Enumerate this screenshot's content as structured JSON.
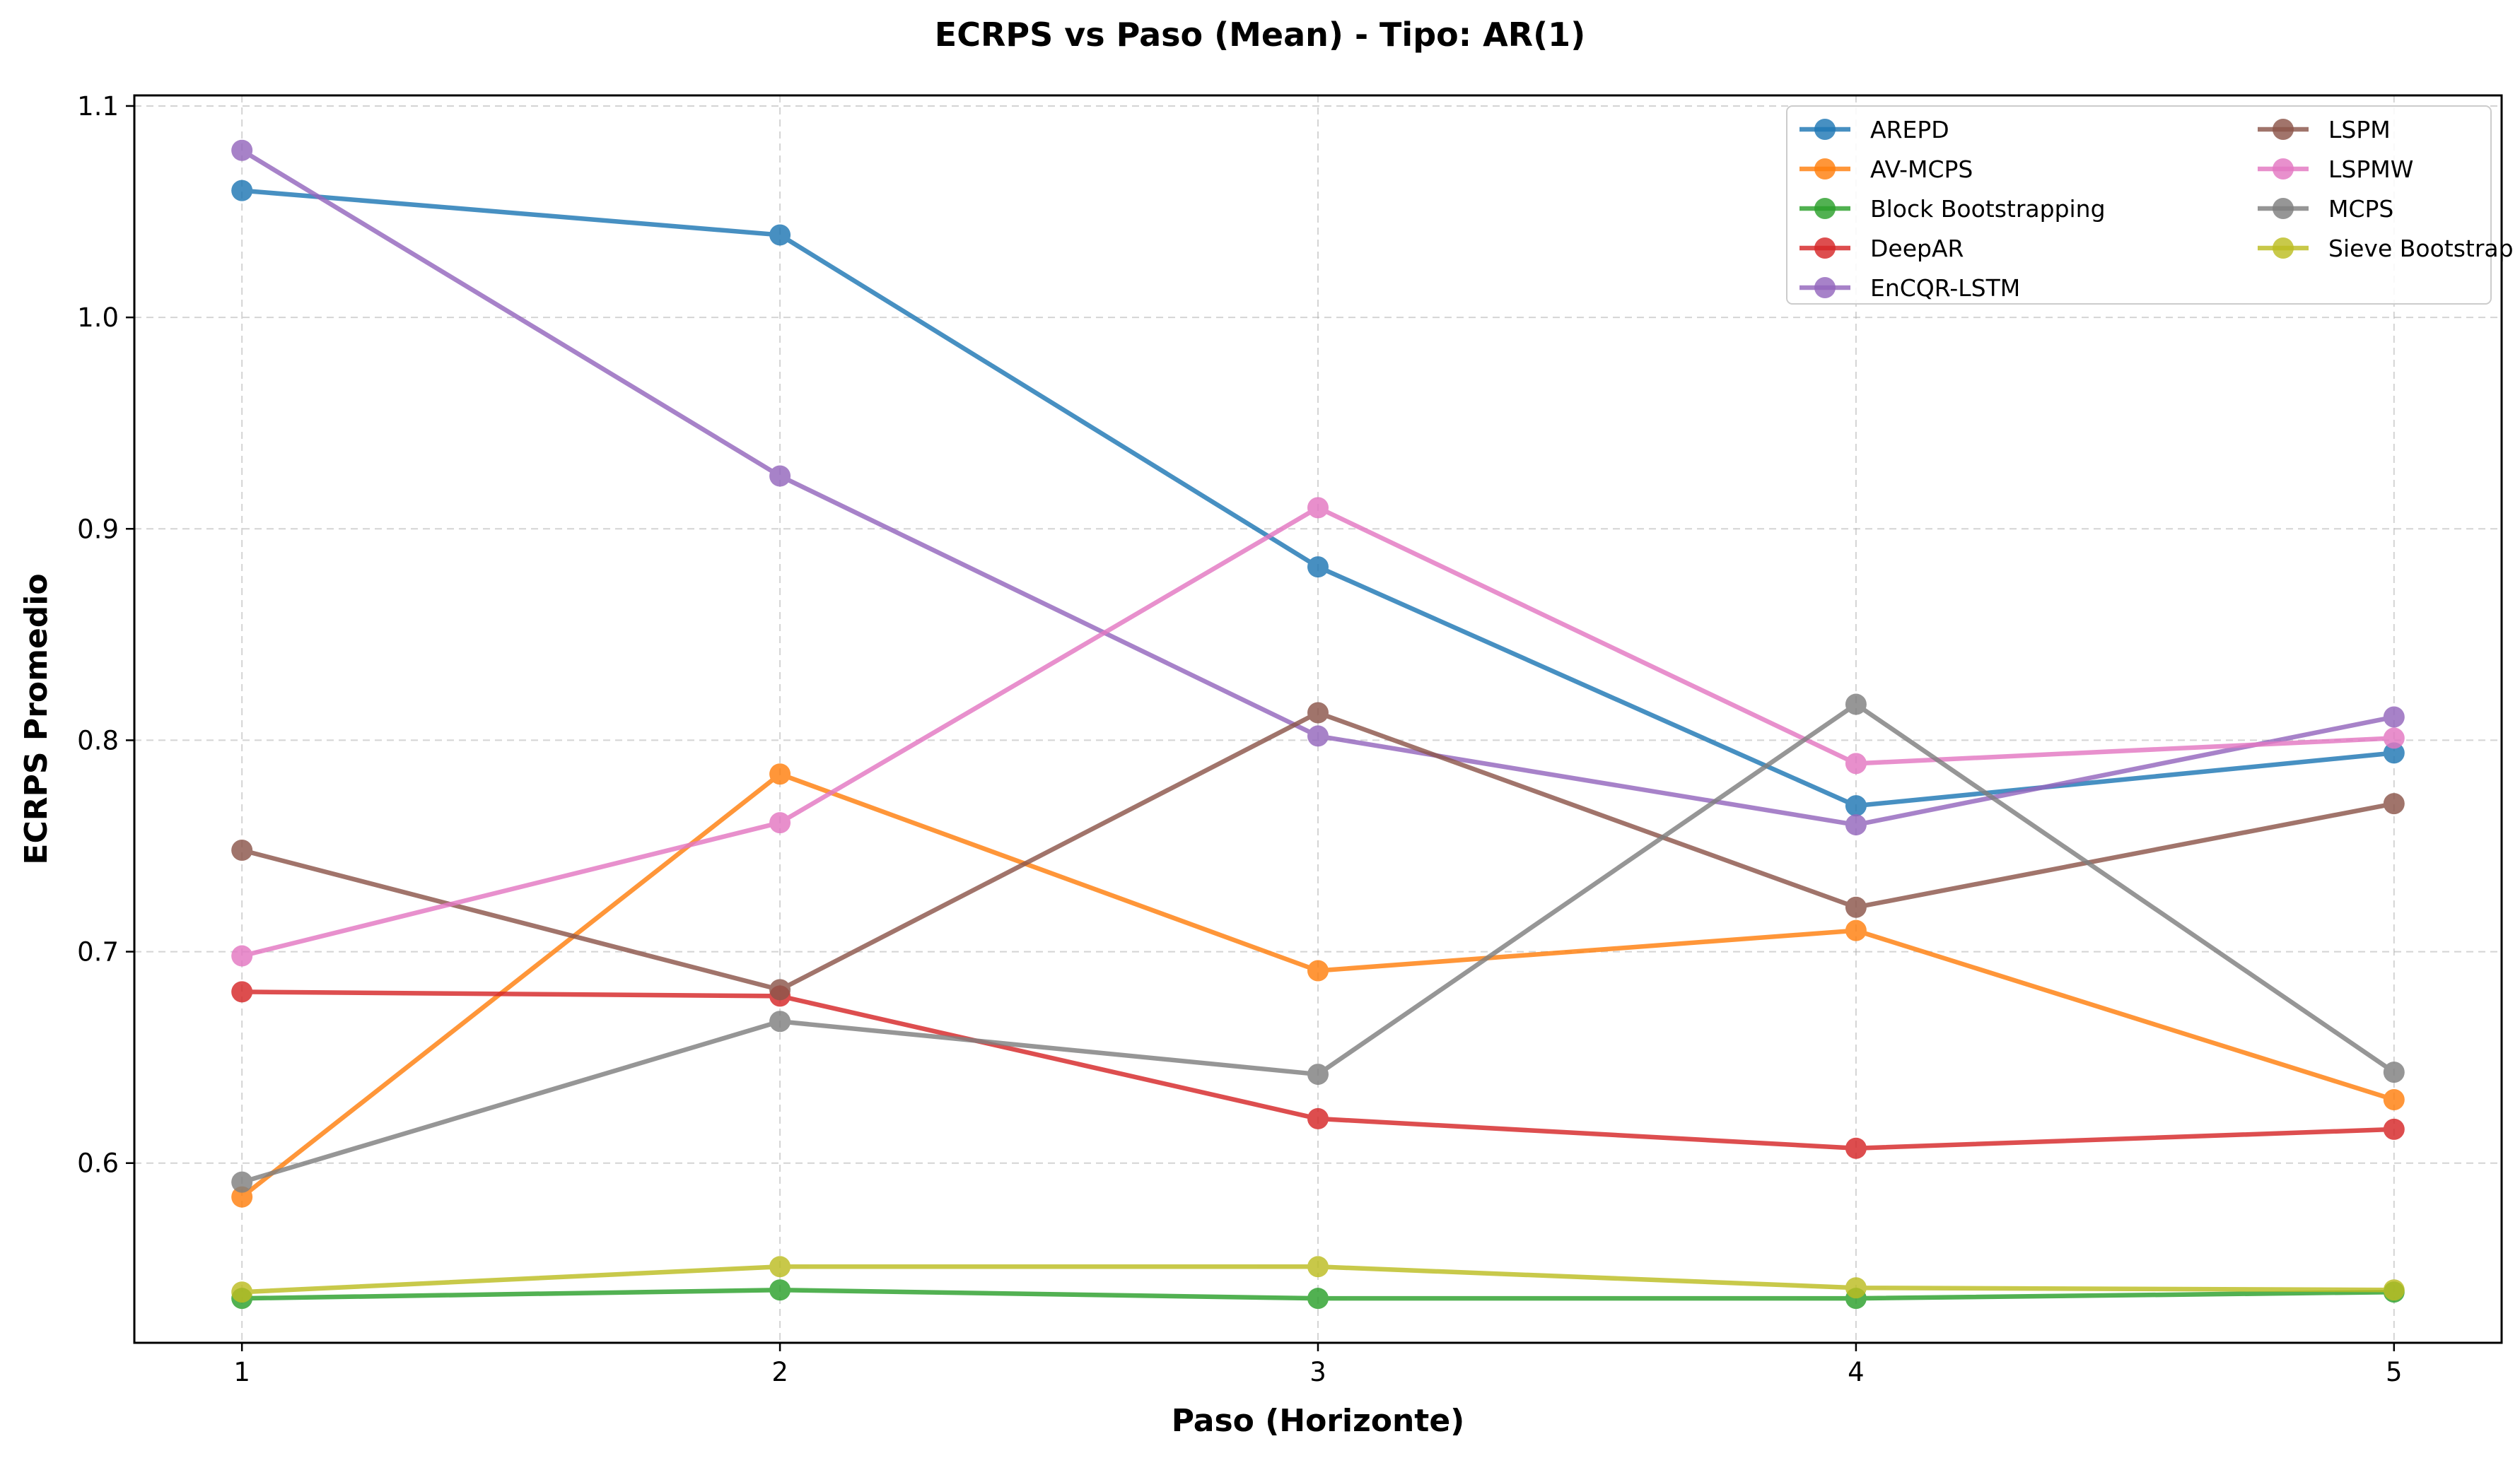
{
  "chart_data": {
    "type": "line",
    "title": "ECRPS vs Paso (Mean) - Tipo: AR(1)",
    "xlabel": "Paso (Horizonte)",
    "ylabel": "ECRPS Promedio",
    "x": [
      1,
      2,
      3,
      4,
      5
    ],
    "xticks": [
      "1",
      "2",
      "3",
      "4",
      "5"
    ],
    "xlim": [
      0.8,
      5.2
    ],
    "ylim": [
      0.515,
      1.105
    ],
    "yticks": [
      "0.6",
      "0.7",
      "0.8",
      "0.9",
      "1.0",
      "1.1"
    ],
    "grid": true,
    "legend_position": "top-right",
    "series": [
      {
        "name": "AREPD",
        "color": "#1f77b4",
        "values": [
          1.06,
          1.039,
          0.882,
          0.769,
          0.794
        ]
      },
      {
        "name": "AV-MCPS",
        "color": "#ff7f0e",
        "values": [
          0.584,
          0.784,
          0.691,
          0.71,
          0.63
        ]
      },
      {
        "name": "Block Bootstrapping",
        "color": "#2ca02c",
        "values": [
          0.536,
          0.54,
          0.536,
          0.536,
          0.539
        ]
      },
      {
        "name": "DeepAR",
        "color": "#d62728",
        "values": [
          0.681,
          0.679,
          0.621,
          0.607,
          0.616
        ]
      },
      {
        "name": "EnCQR-LSTM",
        "color": "#9467bd",
        "values": [
          1.079,
          0.925,
          0.802,
          0.76,
          0.811
        ]
      },
      {
        "name": "LSPM",
        "color": "#8c564b",
        "values": [
          0.748,
          0.682,
          0.813,
          0.721,
          0.77
        ]
      },
      {
        "name": "LSPMW",
        "color": "#e377c2",
        "values": [
          0.698,
          0.761,
          0.91,
          0.789,
          0.801
        ]
      },
      {
        "name": "MCPS",
        "color": "#7f7f7f",
        "values": [
          0.591,
          0.667,
          0.642,
          0.817,
          0.643
        ]
      },
      {
        "name": "Sieve Bootstrap",
        "color": "#bcbd22",
        "values": [
          0.539,
          0.551,
          0.551,
          0.541,
          0.54
        ]
      }
    ]
  }
}
